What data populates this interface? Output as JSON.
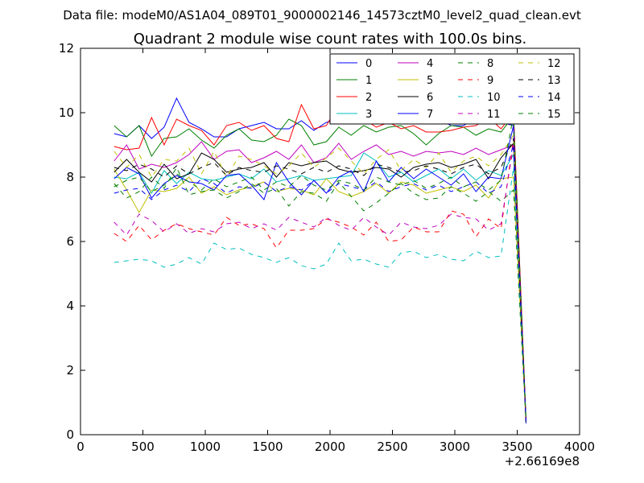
{
  "figure": {
    "suptitle": "Data file: modeM0/AS1A04_089T01_9000002146_14573cztM0_level2_quad_clean.evt"
  },
  "chart_data": {
    "type": "line",
    "title": "Quadrant 2 module wise count rates with 100.0s bins.",
    "xlabel": "",
    "ylabel": "",
    "xlim": [
      0,
      4000
    ],
    "ylim": [
      0,
      12
    ],
    "x_offset_label": "+2.66169e8",
    "xticks": [
      0,
      500,
      1000,
      1500,
      2000,
      2500,
      3000,
      3500,
      4000
    ],
    "xtick_labels": [
      "0",
      "500",
      "1000",
      "1500",
      "2000",
      "2500",
      "3000",
      "3500",
      "4000"
    ],
    "yticks": [
      0,
      2,
      4,
      6,
      8,
      10,
      12
    ],
    "ytick_labels": [
      "0",
      "2",
      "4",
      "6",
      "8",
      "10",
      "12"
    ],
    "grid": false,
    "legend_position": "top-right",
    "x": [
      270,
      370,
      470,
      570,
      670,
      770,
      870,
      970,
      1070,
      1170,
      1270,
      1370,
      1470,
      1570,
      1670,
      1770,
      1870,
      1970,
      2070,
      2170,
      2270,
      2370,
      2470,
      2570,
      2670,
      2770,
      2870,
      2970,
      3070,
      3170,
      3270,
      3370,
      3470,
      3570
    ],
    "series": [
      {
        "name": "0",
        "color": "#0000ff",
        "dash": "solid",
        "values": [
          9.35,
          9.25,
          9.6,
          9.2,
          9.55,
          10.45,
          9.7,
          9.5,
          9.25,
          9.25,
          9.5,
          9.6,
          9.7,
          9.5,
          9.5,
          9.75,
          9.45,
          9.7,
          9.8,
          9.65,
          9.9,
          9.85,
          9.8,
          9.9,
          9.7,
          9.8,
          9.8,
          9.6,
          9.6,
          9.85,
          9.65,
          9.7,
          9.6,
          0.5
        ]
      },
      {
        "name": "1",
        "color": "#008000",
        "dash": "solid",
        "values": [
          9.6,
          9.25,
          9.6,
          8.65,
          9.2,
          9.25,
          9.5,
          9.15,
          8.9,
          9.3,
          9.5,
          9.15,
          9.1,
          9.3,
          9.8,
          9.6,
          9.0,
          9.1,
          9.55,
          9.3,
          9.6,
          9.4,
          9.55,
          9.6,
          9.35,
          9.0,
          9.35,
          9.6,
          9.55,
          9.3,
          9.5,
          9.4,
          9.9,
          0.45
        ]
      },
      {
        "name": "2",
        "color": "#ff0000",
        "dash": "solid",
        "values": [
          8.95,
          8.85,
          8.9,
          9.85,
          9.0,
          9.8,
          9.6,
          9.45,
          9.0,
          9.6,
          9.7,
          9.45,
          9.6,
          9.2,
          9.1,
          10.25,
          9.5,
          9.6,
          10.25,
          9.65,
          9.8,
          9.55,
          9.7,
          9.5,
          9.6,
          9.4,
          9.4,
          9.45,
          9.55,
          9.6,
          9.85,
          9.5,
          10.0,
          0.45
        ]
      },
      {
        "name": "3",
        "color": "#00bfbf",
        "dash": "solid",
        "values": [
          8.0,
          7.95,
          8.15,
          7.5,
          8.2,
          7.8,
          8.15,
          7.95,
          7.9,
          8.0,
          8.1,
          7.95,
          8.25,
          7.85,
          7.95,
          8.05,
          7.9,
          7.95,
          8.0,
          8.05,
          8.75,
          8.5,
          8.0,
          8.15,
          7.85,
          8.05,
          8.25,
          7.95,
          8.25,
          7.9,
          8.2,
          8.05,
          8.7,
          0.4
        ]
      },
      {
        "name": "4",
        "color": "#bf00bf",
        "dash": "solid",
        "values": [
          8.5,
          9.0,
          8.25,
          8.4,
          8.3,
          8.45,
          8.7,
          9.1,
          8.55,
          8.8,
          8.85,
          8.45,
          8.6,
          8.8,
          8.55,
          9.0,
          8.45,
          8.6,
          9.05,
          8.55,
          8.8,
          9.0,
          8.7,
          8.8,
          8.65,
          8.8,
          8.75,
          8.8,
          8.7,
          8.9,
          8.7,
          8.85,
          9.0,
          0.4
        ]
      },
      {
        "name": "5",
        "color": "#bfbf00",
        "dash": "solid",
        "values": [
          8.25,
          7.6,
          6.9,
          7.6,
          7.55,
          7.65,
          8.0,
          7.5,
          7.7,
          7.45,
          7.6,
          7.7,
          7.85,
          7.55,
          7.65,
          7.6,
          7.45,
          7.95,
          7.55,
          7.4,
          7.55,
          7.8,
          7.5,
          7.85,
          7.75,
          7.5,
          7.6,
          7.7,
          7.55,
          7.75,
          7.35,
          7.95,
          8.0,
          0.4
        ]
      },
      {
        "name": "6",
        "color": "#000000",
        "dash": "solid",
        "values": [
          8.15,
          8.55,
          8.15,
          7.85,
          8.4,
          7.95,
          8.1,
          8.75,
          8.55,
          8.15,
          8.25,
          8.3,
          8.45,
          8.0,
          8.45,
          8.35,
          8.45,
          8.5,
          8.25,
          8.15,
          8.2,
          8.3,
          8.25,
          8.0,
          8.3,
          8.4,
          8.45,
          8.3,
          8.4,
          8.55,
          7.95,
          8.6,
          9.05,
          0.4
        ]
      },
      {
        "name": "7",
        "color": "#0000ff",
        "dash": "solid",
        "values": [
          7.95,
          8.3,
          8.1,
          7.35,
          7.8,
          8.05,
          7.85,
          7.8,
          7.6,
          8.05,
          8.1,
          7.75,
          7.3,
          8.45,
          7.85,
          7.45,
          7.9,
          7.5,
          8.0,
          8.2,
          7.55,
          8.5,
          7.85,
          8.3,
          7.95,
          8.25,
          8.0,
          7.75,
          8.1,
          7.55,
          8.0,
          7.95,
          9.6,
          0.35
        ]
      },
      {
        "name": "8",
        "color": "#008000",
        "dash": "dashed",
        "values": [
          7.8,
          7.35,
          7.55,
          8.0,
          7.65,
          8.3,
          7.45,
          7.55,
          7.6,
          7.35,
          7.55,
          7.8,
          7.5,
          7.65,
          7.1,
          7.55,
          7.5,
          7.25,
          7.85,
          7.4,
          6.95,
          7.2,
          7.5,
          7.8,
          7.5,
          7.3,
          7.35,
          7.7,
          7.5,
          7.25,
          7.55,
          7.25,
          7.6,
          0.4
        ]
      },
      {
        "name": "9",
        "color": "#ff0000",
        "dash": "dashed",
        "values": [
          6.25,
          6.0,
          6.5,
          6.05,
          6.35,
          6.55,
          6.4,
          6.3,
          6.2,
          6.75,
          6.5,
          6.55,
          6.4,
          5.8,
          6.35,
          6.35,
          6.4,
          6.7,
          6.6,
          6.45,
          6.2,
          6.6,
          6.0,
          6.05,
          6.45,
          6.3,
          6.3,
          6.95,
          6.85,
          6.15,
          6.7,
          6.4,
          9.2,
          0.4
        ]
      },
      {
        "name": "10",
        "color": "#00bfbf",
        "dash": "dashed",
        "values": [
          5.35,
          5.4,
          5.45,
          5.4,
          5.2,
          5.3,
          5.5,
          5.3,
          5.95,
          5.75,
          5.8,
          5.6,
          5.5,
          5.35,
          5.5,
          5.25,
          5.15,
          5.3,
          5.95,
          5.4,
          5.45,
          5.3,
          5.2,
          5.65,
          5.7,
          5.5,
          5.6,
          5.45,
          5.4,
          5.7,
          5.5,
          5.55,
          8.3,
          0.4
        ]
      },
      {
        "name": "11",
        "color": "#bf00bf",
        "dash": "dashed",
        "values": [
          6.6,
          6.2,
          6.85,
          6.65,
          6.3,
          6.55,
          6.25,
          6.4,
          6.3,
          6.55,
          6.6,
          6.4,
          6.55,
          6.35,
          6.75,
          6.6,
          6.45,
          6.75,
          6.5,
          6.35,
          6.75,
          6.45,
          6.2,
          6.6,
          6.45,
          6.4,
          6.5,
          6.85,
          6.75,
          6.7,
          6.35,
          6.55,
          9.0,
          0.4
        ]
      },
      {
        "name": "12",
        "color": "#bfbf00",
        "dash": "dashed",
        "values": [
          8.8,
          8.3,
          8.7,
          8.0,
          8.55,
          8.5,
          8.9,
          8.1,
          8.8,
          8.0,
          8.65,
          8.55,
          8.35,
          8.1,
          8.35,
          8.75,
          8.3,
          8.6,
          8.9,
          8.5,
          8.1,
          8.55,
          8.85,
          8.2,
          8.55,
          8.3,
          8.75,
          8.15,
          8.5,
          8.65,
          8.35,
          8.7,
          9.3,
          0.4
        ]
      },
      {
        "name": "13",
        "color": "#000000",
        "dash": "dashed",
        "values": [
          8.3,
          8.2,
          8.4,
          8.25,
          8.0,
          8.35,
          8.1,
          8.3,
          8.45,
          8.05,
          8.3,
          8.2,
          8.15,
          8.35,
          8.25,
          8.1,
          8.3,
          8.15,
          8.35,
          8.25,
          8.05,
          8.4,
          8.3,
          8.15,
          8.2,
          8.35,
          8.25,
          8.1,
          8.3,
          8.4,
          8.1,
          8.3,
          9.2,
          0.4
        ]
      },
      {
        "name": "14",
        "color": "#0000ff",
        "dash": "dashed",
        "values": [
          7.5,
          7.6,
          7.65,
          7.3,
          7.6,
          7.75,
          7.55,
          7.95,
          7.8,
          7.5,
          7.7,
          7.65,
          7.85,
          7.55,
          7.7,
          7.6,
          7.9,
          7.5,
          7.8,
          7.7,
          7.6,
          7.85,
          7.55,
          7.7,
          7.8,
          7.6,
          7.75,
          7.55,
          7.7,
          7.85,
          7.5,
          7.7,
          9.0,
          0.4
        ]
      },
      {
        "name": "15",
        "color": "#008000",
        "dash": "dashed",
        "values": [
          7.7,
          7.9,
          8.0,
          7.55,
          7.75,
          8.1,
          7.85,
          7.6,
          7.95,
          7.7,
          7.85,
          8.0,
          7.6,
          7.85,
          7.7,
          8.05,
          7.75,
          7.6,
          7.9,
          7.8,
          7.6,
          8.0,
          7.85,
          7.75,
          7.9,
          7.65,
          7.8,
          8.0,
          7.7,
          7.85,
          7.6,
          7.9,
          9.9,
          0.4
        ]
      }
    ]
  }
}
